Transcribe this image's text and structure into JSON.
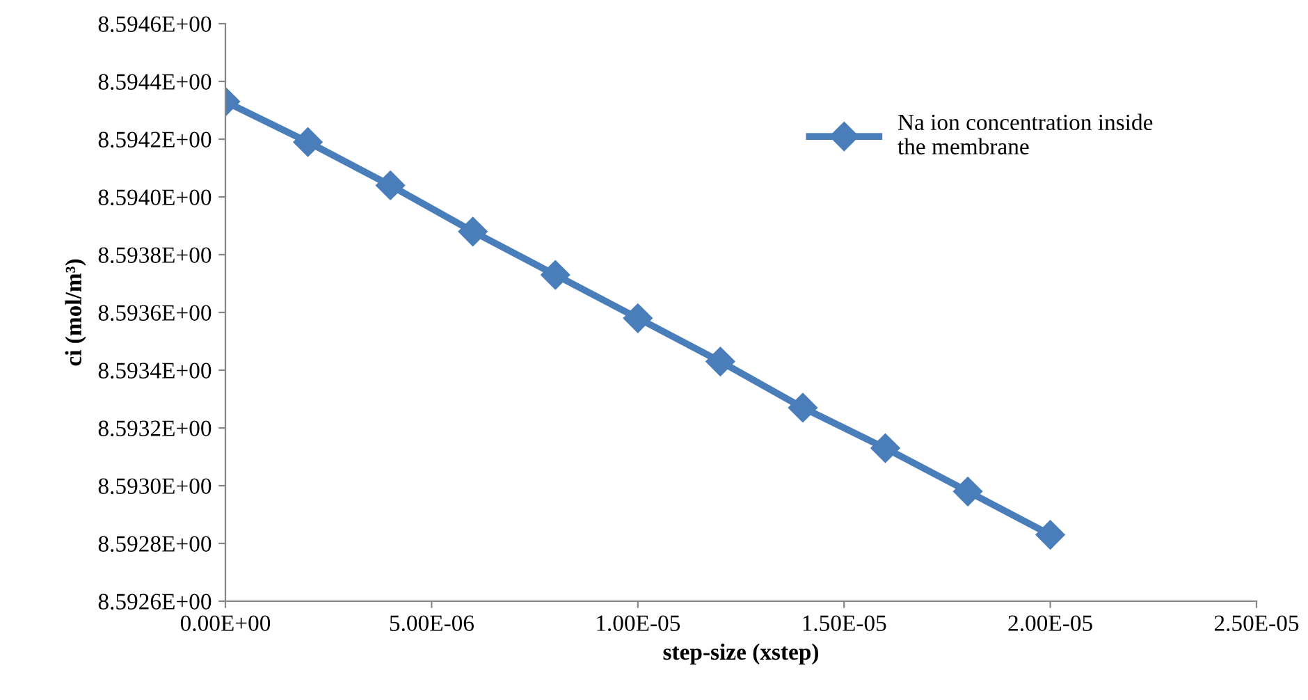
{
  "chart_data": {
    "type": "line",
    "xlabel": "step-size (xstep)",
    "ylabel": "ci (mol/m³)",
    "x": [
      0,
      2e-06,
      4e-06,
      6e-06,
      8e-06,
      1e-05,
      1.2e-05,
      1.4e-05,
      1.6e-05,
      1.8e-05,
      2e-05
    ],
    "series": [
      {
        "name": "Na ion concentration inside\nthe membrane",
        "color": "#4a7ebb",
        "values": [
          8.59433,
          8.59419,
          8.59404,
          8.59388,
          8.59373,
          8.59358,
          8.59343,
          8.59327,
          8.59313,
          8.59298,
          8.59283
        ]
      }
    ],
    "xlim": [
      0,
      2.5e-05
    ],
    "xticks": [
      {
        "value": 0,
        "label": "0.00E+00"
      },
      {
        "value": 5e-06,
        "label": "5.00E-06"
      },
      {
        "value": 1e-05,
        "label": "1.00E-05"
      },
      {
        "value": 1.5e-05,
        "label": "1.50E-05"
      },
      {
        "value": 2e-05,
        "label": "2.00E-05"
      },
      {
        "value": 2.5e-05,
        "label": "2.50E-05"
      }
    ],
    "ylim": [
      8.5926,
      8.5946
    ],
    "yticks": [
      {
        "value": 8.5926,
        "label": "8.5926E+00"
      },
      {
        "value": 8.5928,
        "label": "8.5928E+00"
      },
      {
        "value": 8.593,
        "label": "8.5930E+00"
      },
      {
        "value": 8.5932,
        "label": "8.5932E+00"
      },
      {
        "value": 8.5934,
        "label": "8.5934E+00"
      },
      {
        "value": 8.5936,
        "label": "8.5936E+00"
      },
      {
        "value": 8.5938,
        "label": "8.5938E+00"
      },
      {
        "value": 8.594,
        "label": "8.5940E+00"
      },
      {
        "value": 8.5942,
        "label": "8.5942E+00"
      },
      {
        "value": 8.5944,
        "label": "8.5944E+00"
      },
      {
        "value": 8.5946,
        "label": "8.5946E+00"
      }
    ],
    "grid": false,
    "legend": "top right",
    "marker": "diamond",
    "line_style": "solid"
  }
}
